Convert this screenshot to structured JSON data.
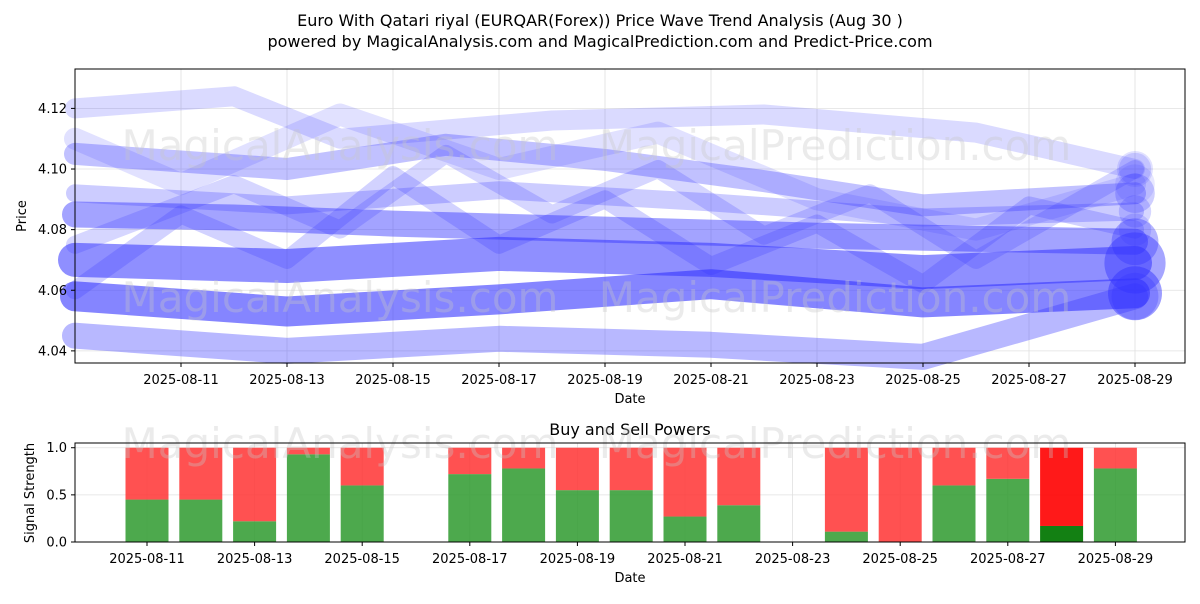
{
  "title_line1": "Euro With Qatari riyal (EURQAR(Forex)) Price Wave Trend Analysis (Aug 30 )",
  "title_line2": "powered by MagicalAnalysis.com and MagicalPrediction.com and Predict-Price.com",
  "watermark_left": "MagicalAnalysis.com",
  "watermark_right": "MagicalPrediction.com",
  "colors": {
    "wave": "#3333ff",
    "buy": "#2e9a2e",
    "sell": "#ff3333",
    "buy_strong": "#138013",
    "sell_strong": "#ff0000"
  },
  "chart_data": [
    {
      "type": "line",
      "name": "price-wave-chart",
      "xlabel": "Date",
      "ylabel": "Price",
      "x_ticks": [
        "2025-08-11",
        "2025-08-13",
        "2025-08-15",
        "2025-08-17",
        "2025-08-19",
        "2025-08-21",
        "2025-08-23",
        "2025-08-25",
        "2025-08-27",
        "2025-08-29"
      ],
      "y_ticks": [
        "4.04",
        "4.06",
        "4.08",
        "4.10",
        "4.12"
      ],
      "ylim": [
        4.036,
        4.133
      ],
      "xlim": [
        "2025-08-09T00:00",
        "2025-08-29T20:00"
      ],
      "grid": true,
      "series": [
        {
          "x": [
            "2025-08-09",
            "2025-08-13",
            "2025-08-17",
            "2025-08-21",
            "2025-08-25",
            "2025-08-29"
          ],
          "values": [
            4.07,
            4.068,
            4.072,
            4.07,
            4.066,
            4.069
          ]
        },
        {
          "x": [
            "2025-08-09",
            "2025-08-13",
            "2025-08-17",
            "2025-08-21",
            "2025-08-25",
            "2025-08-29"
          ],
          "values": [
            4.058,
            4.053,
            4.057,
            4.062,
            4.056,
            4.059
          ]
        },
        {
          "x": [
            "2025-08-09",
            "2025-08-12",
            "2025-08-15",
            "2025-08-19",
            "2025-08-23",
            "2025-08-26",
            "2025-08-29"
          ],
          "values": [
            4.085,
            4.084,
            4.082,
            4.08,
            4.078,
            4.077,
            4.076
          ]
        },
        {
          "x": [
            "2025-08-09",
            "2025-08-13",
            "2025-08-16",
            "2025-08-19",
            "2025-08-22",
            "2025-08-25",
            "2025-08-29"
          ],
          "values": [
            4.105,
            4.1,
            4.108,
            4.103,
            4.096,
            4.088,
            4.092
          ]
        },
        {
          "x": [
            "2025-08-09",
            "2025-08-12",
            "2025-08-14",
            "2025-08-18",
            "2025-08-22",
            "2025-08-26",
            "2025-08-29"
          ],
          "values": [
            4.12,
            4.124,
            4.11,
            4.116,
            4.118,
            4.112,
            4.1
          ]
        },
        {
          "x": [
            "2025-08-09",
            "2025-08-11",
            "2025-08-13",
            "2025-08-15",
            "2025-08-17",
            "2025-08-19",
            "2025-08-21",
            "2025-08-23",
            "2025-08-25",
            "2025-08-27",
            "2025-08-29"
          ],
          "values": [
            4.06,
            4.085,
            4.07,
            4.098,
            4.075,
            4.09,
            4.068,
            4.082,
            4.062,
            4.088,
            4.08
          ]
        },
        {
          "x": [
            "2025-08-09",
            "2025-08-12",
            "2025-08-14",
            "2025-08-16",
            "2025-08-18",
            "2025-08-20",
            "2025-08-22",
            "2025-08-24",
            "2025-08-26",
            "2025-08-29"
          ],
          "values": [
            4.075,
            4.095,
            4.08,
            4.105,
            4.085,
            4.1,
            4.078,
            4.092,
            4.07,
            4.1
          ]
        },
        {
          "x": [
            "2025-08-09",
            "2025-08-13",
            "2025-08-17",
            "2025-08-21",
            "2025-08-25",
            "2025-08-29"
          ],
          "values": [
            4.045,
            4.04,
            4.044,
            4.042,
            4.038,
            4.058
          ]
        },
        {
          "x": [
            "2025-08-09",
            "2025-08-11",
            "2025-08-14",
            "2025-08-17",
            "2025-08-20",
            "2025-08-23",
            "2025-08-26",
            "2025-08-29"
          ],
          "values": [
            4.11,
            4.095,
            4.118,
            4.1,
            4.112,
            4.09,
            4.08,
            4.095
          ]
        },
        {
          "x": [
            "2025-08-09",
            "2025-08-13",
            "2025-08-17",
            "2025-08-21",
            "2025-08-25",
            "2025-08-29"
          ],
          "values": [
            4.092,
            4.088,
            4.093,
            4.089,
            4.084,
            4.086
          ]
        }
      ]
    },
    {
      "type": "bar",
      "name": "buy-sell-powers-chart",
      "title": "Buy and Sell Powers",
      "xlabel": "Date",
      "ylabel": "Signal Strength",
      "ylim": [
        0,
        1.05
      ],
      "y_ticks": [
        "0.0",
        "0.5",
        "1.0"
      ],
      "x_ticks": [
        "2025-08-11",
        "2025-08-13",
        "2025-08-15",
        "2025-08-17",
        "2025-08-19",
        "2025-08-21",
        "2025-08-23",
        "2025-08-25",
        "2025-08-27",
        "2025-08-29"
      ],
      "categories": [
        "2025-08-11",
        "2025-08-12",
        "2025-08-13",
        "2025-08-14",
        "2025-08-15",
        "2025-08-17",
        "2025-08-18",
        "2025-08-19",
        "2025-08-20",
        "2025-08-21",
        "2025-08-22",
        "2025-08-24",
        "2025-08-25",
        "2025-08-26",
        "2025-08-27",
        "2025-08-28",
        "2025-08-29"
      ],
      "series": [
        {
          "name": "Buy",
          "values": [
            0.45,
            0.45,
            0.22,
            0.93,
            0.6,
            0.72,
            0.78,
            0.55,
            0.55,
            0.27,
            0.39,
            0.11,
            0.0,
            0.6,
            0.67,
            0.17,
            0.78
          ]
        },
        {
          "name": "Sell",
          "values": [
            0.55,
            0.55,
            0.78,
            0.07,
            0.4,
            0.28,
            0.22,
            0.45,
            0.45,
            0.73,
            0.61,
            0.89,
            1.0,
            0.4,
            0.33,
            0.83,
            0.22
          ]
        }
      ],
      "strong": [
        false,
        false,
        false,
        false,
        false,
        false,
        false,
        false,
        false,
        false,
        false,
        false,
        false,
        false,
        false,
        true,
        false
      ],
      "grid": true
    }
  ]
}
